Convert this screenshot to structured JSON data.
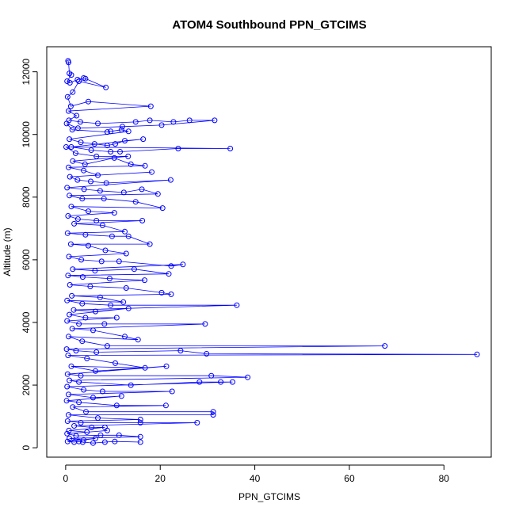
{
  "chart_data": {
    "type": "line",
    "title": "ATOM4 Southbound PPN_GTCIMS",
    "xlabel": "PPN_GTCIMS",
    "ylabel": "Altitude (m)",
    "xlim": [
      -4,
      90
    ],
    "ylim": [
      -300,
      12800
    ],
    "xticks": [
      0,
      20,
      40,
      60,
      80
    ],
    "yticks": [
      0,
      2000,
      4000,
      6000,
      8000,
      10000,
      12000
    ],
    "xtick_labels": [
      "0",
      "20",
      "40",
      "60",
      "80"
    ],
    "ytick_labels": [
      "0",
      "2000",
      "4000",
      "6000",
      "8000",
      "10000",
      "12000"
    ],
    "marker": "open-circle",
    "colors": {
      "series": "#0000ff",
      "axes": "#000000"
    },
    "series": [
      {
        "name": "PPN_GTCIMS",
        "points": [
          [
            0.5,
            12350
          ],
          [
            0.6,
            12300
          ],
          [
            0.8,
            11950
          ],
          [
            1.2,
            11900
          ],
          [
            0.3,
            11700
          ],
          [
            0.9,
            11650
          ],
          [
            2.5,
            11750
          ],
          [
            3.8,
            11800
          ],
          [
            4.2,
            11780
          ],
          [
            8.5,
            11500
          ],
          [
            2.8,
            11700
          ],
          [
            1.5,
            11350
          ],
          [
            0.4,
            11200
          ],
          [
            1.1,
            10900
          ],
          [
            4.8,
            11050
          ],
          [
            18,
            10900
          ],
          [
            0.6,
            10750
          ],
          [
            2.3,
            10600
          ],
          [
            0.7,
            10450
          ],
          [
            3.1,
            10400
          ],
          [
            6.8,
            10350
          ],
          [
            14.8,
            10400
          ],
          [
            17.8,
            10450
          ],
          [
            22.8,
            10400
          ],
          [
            26.2,
            10450
          ],
          [
            31.5,
            10450
          ],
          [
            20.3,
            10300
          ],
          [
            12,
            10250
          ],
          [
            2.6,
            10200
          ],
          [
            0.2,
            10350
          ],
          [
            1.4,
            10150
          ],
          [
            8.8,
            10080
          ],
          [
            9.5,
            10100
          ],
          [
            11.8,
            10150
          ],
          [
            13.3,
            10100
          ],
          [
            0.8,
            9850
          ],
          [
            3.2,
            9750
          ],
          [
            6.1,
            9700
          ],
          [
            8.8,
            9650
          ],
          [
            10.5,
            9700
          ],
          [
            12.5,
            9800
          ],
          [
            16.4,
            9850
          ],
          [
            1.2,
            9600
          ],
          [
            5.4,
            9500
          ],
          [
            9.5,
            9450
          ],
          [
            11.5,
            9450
          ],
          [
            23.8,
            9550
          ],
          [
            34.8,
            9550
          ],
          [
            0.1,
            9600
          ],
          [
            2.1,
            9400
          ],
          [
            6.5,
            9300
          ],
          [
            13.2,
            9300
          ],
          [
            1.5,
            9150
          ],
          [
            4.1,
            9050
          ],
          [
            10.3,
            9250
          ],
          [
            13.8,
            9050
          ],
          [
            16.8,
            9000
          ],
          [
            0.6,
            8950
          ],
          [
            3.8,
            8850
          ],
          [
            6.8,
            8700
          ],
          [
            18.2,
            8800
          ],
          [
            0.9,
            8650
          ],
          [
            2.5,
            8550
          ],
          [
            5.3,
            8500
          ],
          [
            8.6,
            8450
          ],
          [
            22.2,
            8550
          ],
          [
            0.3,
            8300
          ],
          [
            3.9,
            8250
          ],
          [
            7.3,
            8200
          ],
          [
            12.3,
            8150
          ],
          [
            16.1,
            8250
          ],
          [
            19.5,
            8100
          ],
          [
            0.8,
            8050
          ],
          [
            3.5,
            7950
          ],
          [
            8.1,
            7950
          ],
          [
            14.8,
            7850
          ],
          [
            20.5,
            7650
          ],
          [
            1.2,
            7700
          ],
          [
            4.8,
            7550
          ],
          [
            10.3,
            7500
          ],
          [
            0.5,
            7400
          ],
          [
            2.6,
            7300
          ],
          [
            6.5,
            7250
          ],
          [
            16.2,
            7250
          ],
          [
            1.8,
            7150
          ],
          [
            7.8,
            7100
          ],
          [
            12.5,
            6900
          ],
          [
            0.4,
            6850
          ],
          [
            4.2,
            6800
          ],
          [
            9.8,
            6750
          ],
          [
            13.3,
            6750
          ],
          [
            17.8,
            6500
          ],
          [
            1.1,
            6500
          ],
          [
            4.8,
            6450
          ],
          [
            8.4,
            6300
          ],
          [
            12.8,
            6200
          ],
          [
            0.7,
            6100
          ],
          [
            3.3,
            6000
          ],
          [
            7.6,
            5950
          ],
          [
            11.3,
            5950
          ],
          [
            22.3,
            5800
          ],
          [
            24.8,
            5850
          ],
          [
            1.5,
            5700
          ],
          [
            6.2,
            5650
          ],
          [
            14.5,
            5700
          ],
          [
            21.8,
            5550
          ],
          [
            0.5,
            5500
          ],
          [
            3.6,
            5450
          ],
          [
            9.3,
            5400
          ],
          [
            16.7,
            5350
          ],
          [
            0.9,
            5200
          ],
          [
            5.2,
            5150
          ],
          [
            12.8,
            5100
          ],
          [
            20.3,
            4950
          ],
          [
            22.3,
            4900
          ],
          [
            1.3,
            4850
          ],
          [
            7.3,
            4800
          ],
          [
            12.2,
            4650
          ],
          [
            0.3,
            4700
          ],
          [
            3.5,
            4600
          ],
          [
            9.5,
            4550
          ],
          [
            36.2,
            4550
          ],
          [
            1.7,
            4400
          ],
          [
            6.3,
            4350
          ],
          [
            13.3,
            4450
          ],
          [
            0.8,
            4250
          ],
          [
            4.2,
            4150
          ],
          [
            10.8,
            4150
          ],
          [
            0.3,
            4050
          ],
          [
            2.8,
            3950
          ],
          [
            8.2,
            3950
          ],
          [
            29.5,
            3950
          ],
          [
            1.4,
            3800
          ],
          [
            5.8,
            3750
          ],
          [
            12.5,
            3550
          ],
          [
            15.3,
            3450
          ],
          [
            0.6,
            3550
          ],
          [
            3.5,
            3400
          ],
          [
            8.8,
            3250
          ],
          [
            67.5,
            3250
          ],
          [
            0.2,
            3150
          ],
          [
            2.2,
            3100
          ],
          [
            6.5,
            3050
          ],
          [
            24.3,
            3100
          ],
          [
            29.8,
            3000
          ],
          [
            87,
            2980
          ],
          [
            0.5,
            2950
          ],
          [
            4.5,
            2850
          ],
          [
            10.5,
            2700
          ],
          [
            16.8,
            2550
          ],
          [
            1.2,
            2600
          ],
          [
            6.3,
            2450
          ],
          [
            21.3,
            2600
          ],
          [
            0.4,
            2350
          ],
          [
            3.2,
            2300
          ],
          [
            30.8,
            2300
          ],
          [
            38.5,
            2250
          ],
          [
            0.8,
            2150
          ],
          [
            2.8,
            2100
          ],
          [
            13.8,
            2000
          ],
          [
            28.3,
            2100
          ],
          [
            32.8,
            2100
          ],
          [
            35.3,
            2100
          ],
          [
            0.3,
            1950
          ],
          [
            3.8,
            1850
          ],
          [
            7.8,
            1800
          ],
          [
            22.5,
            1800
          ],
          [
            0.6,
            1700
          ],
          [
            5.8,
            1600
          ],
          [
            11.8,
            1650
          ],
          [
            0.2,
            1500
          ],
          [
            2.8,
            1450
          ],
          [
            10.8,
            1350
          ],
          [
            21.2,
            1350
          ],
          [
            1.5,
            1300
          ],
          [
            4.3,
            1150
          ],
          [
            31.2,
            1150
          ],
          [
            31.2,
            1050
          ],
          [
            0.6,
            1050
          ],
          [
            6.8,
            950
          ],
          [
            15.8,
            900
          ],
          [
            0.4,
            850
          ],
          [
            3.2,
            800
          ],
          [
            15.8,
            800
          ],
          [
            27.8,
            800
          ],
          [
            1.8,
            700
          ],
          [
            5.5,
            650
          ],
          [
            8.3,
            650
          ],
          [
            0.7,
            550
          ],
          [
            4.5,
            500
          ],
          [
            8.8,
            550
          ],
          [
            0.3,
            450
          ],
          [
            2.2,
            380
          ],
          [
            7.4,
            400
          ],
          [
            11.3,
            400
          ],
          [
            15.8,
            350
          ],
          [
            0.8,
            300
          ],
          [
            3.8,
            250
          ],
          [
            6.3,
            300
          ],
          [
            0.4,
            200
          ],
          [
            1.8,
            180
          ],
          [
            2.8,
            200
          ],
          [
            3.6,
            180
          ],
          [
            5.8,
            150
          ],
          [
            8.3,
            180
          ],
          [
            10.4,
            200
          ],
          [
            15.8,
            180
          ]
        ]
      }
    ]
  }
}
